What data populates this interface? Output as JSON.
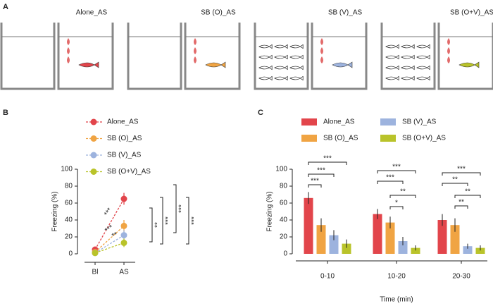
{
  "panel_labels": [
    "A",
    "B",
    "C"
  ],
  "diagram": {
    "conditions": [
      "Alone_AS",
      "SB (O)_AS",
      "SB (V)_AS",
      "SB (O+V)_AS"
    ]
  },
  "chart_data": [
    {
      "type": "line",
      "ylabel": "Freezing (%)",
      "categories": [
        "Bl",
        "AS"
      ],
      "ylim": [
        0,
        100
      ],
      "yticks": [
        0,
        20,
        40,
        60,
        80,
        100
      ],
      "series": [
        {
          "name": "Alone_AS",
          "color": "#e2454b",
          "values": [
            5,
            65
          ],
          "errors": [
            2,
            7
          ]
        },
        {
          "name": "SB (O)_AS",
          "color": "#f0a443",
          "values": [
            2,
            33
          ],
          "errors": [
            1,
            7
          ]
        },
        {
          "name": "SB (V)_AS",
          "color": "#9db3de",
          "values": [
            1,
            22
          ],
          "errors": [
            1,
            6
          ]
        },
        {
          "name": "SB (O+V)_AS",
          "color": "#b9c32a",
          "values": [
            1,
            13
          ],
          "errors": [
            1,
            5
          ]
        }
      ],
      "annotations": [
        "***",
        "***",
        "**",
        "**",
        "***",
        "***",
        "***"
      ]
    },
    {
      "type": "bar",
      "ylabel": "Freezing (%)",
      "xlabel": "Time (min)",
      "categories": [
        "0-10",
        "10-20",
        "20-30"
      ],
      "ylim": [
        0,
        100
      ],
      "yticks": [
        0,
        20,
        40,
        60,
        80,
        100
      ],
      "series": [
        {
          "name": "Alone_AS",
          "color": "#e2454b",
          "values": [
            66,
            47,
            40
          ],
          "errors": [
            7,
            6,
            7
          ]
        },
        {
          "name": "SB (O)_AS",
          "color": "#f0a443",
          "values": [
            34,
            37,
            34
          ],
          "errors": [
            8,
            7,
            8
          ]
        },
        {
          "name": "SB (V)_AS",
          "color": "#9db3de",
          "values": [
            22,
            15,
            9
          ],
          "errors": [
            6,
            5,
            3
          ]
        },
        {
          "name": "SB (O+V)_AS",
          "color": "#b9c32a",
          "values": [
            12,
            7,
            7
          ],
          "errors": [
            5,
            3,
            3
          ]
        }
      ],
      "annotations": [
        "***",
        "***",
        "***",
        "*",
        "**",
        "***",
        "***",
        "**",
        "**",
        "**",
        "***"
      ]
    }
  ]
}
